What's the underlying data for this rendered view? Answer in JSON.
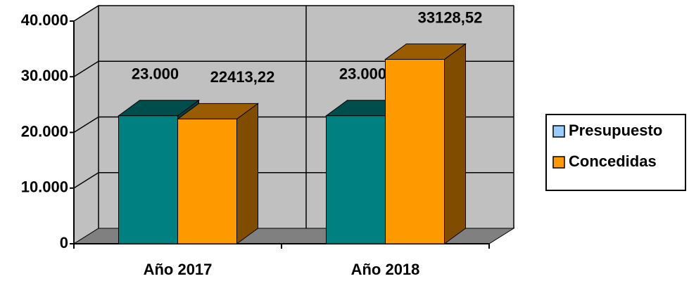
{
  "chart_data": {
    "type": "bar3d",
    "categories": [
      "Año 2017",
      "Año 2018"
    ],
    "series": [
      {
        "name": "Presupuesto",
        "color": "#008080",
        "legend_color": "#99ccff",
        "values": [
          23000,
          23000
        ],
        "value_labels": [
          "23.000",
          "23.000"
        ]
      },
      {
        "name": "Concedidas",
        "color": "#ff9900",
        "legend_color": "#ff9900",
        "values": [
          22413.22,
          33128.52
        ],
        "value_labels": [
          "22413,22",
          "33128,52"
        ]
      }
    ],
    "ylim": [
      0,
      40000
    ],
    "yticks": [
      0,
      {
        "value": 10000,
        "label": "10.000"
      },
      {
        "value": 20000,
        "label": "20.000"
      },
      {
        "value": 30000,
        "label": "30.000"
      },
      {
        "value": 40000,
        "label": "40.000"
      }
    ],
    "grid": true,
    "legend": "right"
  }
}
